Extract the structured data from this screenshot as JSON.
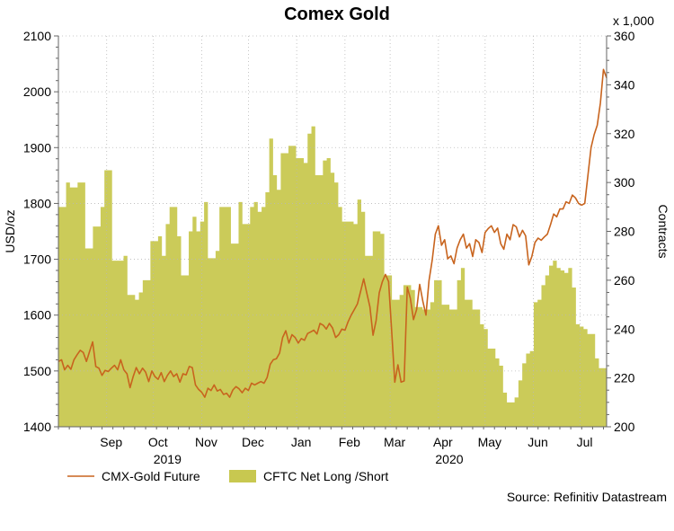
{
  "chart_data": {
    "type": "line+area",
    "title": "Comex Gold",
    "ylabel_left": "USD/oz",
    "ylabel_right": "Contracts",
    "right_multiplier": "x 1,000",
    "ylim_left": [
      1400,
      2100
    ],
    "yticks_left": [
      "1400",
      "1500",
      "1600",
      "1700",
      "1800",
      "1900",
      "2000",
      "2100"
    ],
    "ylim_right": [
      200,
      360
    ],
    "yticks_right": [
      "200",
      "220",
      "240",
      "260",
      "280",
      "300",
      "320",
      "340",
      "360"
    ],
    "x_start": 0,
    "x_end": 352,
    "month_ticks": [
      {
        "label": "Sep",
        "pos": 31
      },
      {
        "label": "Oct",
        "pos": 61
      },
      {
        "label": "Nov",
        "pos": 92
      },
      {
        "label": "Dec",
        "pos": 122
      },
      {
        "label": "Jan",
        "pos": 153
      },
      {
        "label": "Feb",
        "pos": 184
      },
      {
        "label": "Mar",
        "pos": 213
      },
      {
        "label": "Apr",
        "pos": 244
      },
      {
        "label": "May",
        "pos": 274
      },
      {
        "label": "Jun",
        "pos": 305
      },
      {
        "label": "Jul",
        "pos": 335
      }
    ],
    "year_labels": [
      {
        "label": "2019",
        "pos": 70
      },
      {
        "label": "2020",
        "pos": 251
      }
    ],
    "series": [
      {
        "name": "CMX-Gold Future",
        "kind": "line",
        "axis": "left",
        "color": "#c8641e",
        "points": [
          [
            0,
            1517
          ],
          [
            2,
            1520
          ],
          [
            4,
            1502
          ],
          [
            6,
            1510
          ],
          [
            8,
            1503
          ],
          [
            10,
            1520
          ],
          [
            12,
            1529
          ],
          [
            14,
            1537
          ],
          [
            16,
            1533
          ],
          [
            18,
            1517
          ],
          [
            20,
            1535
          ],
          [
            22,
            1552
          ],
          [
            24,
            1508
          ],
          [
            26,
            1505
          ],
          [
            28,
            1492
          ],
          [
            30,
            1501
          ],
          [
            32,
            1499
          ],
          [
            34,
            1505
          ],
          [
            36,
            1510
          ],
          [
            38,
            1502
          ],
          [
            40,
            1520
          ],
          [
            42,
            1502
          ],
          [
            44,
            1495
          ],
          [
            46,
            1470
          ],
          [
            48,
            1490
          ],
          [
            50,
            1506
          ],
          [
            52,
            1495
          ],
          [
            54,
            1505
          ],
          [
            56,
            1498
          ],
          [
            58,
            1481
          ],
          [
            60,
            1500
          ],
          [
            62,
            1490
          ],
          [
            64,
            1485
          ],
          [
            66,
            1497
          ],
          [
            68,
            1481
          ],
          [
            70,
            1492
          ],
          [
            72,
            1500
          ],
          [
            74,
            1490
          ],
          [
            76,
            1495
          ],
          [
            78,
            1480
          ],
          [
            80,
            1495
          ],
          [
            82,
            1493
          ],
          [
            84,
            1508
          ],
          [
            86,
            1506
          ],
          [
            88,
            1475
          ],
          [
            90,
            1467
          ],
          [
            92,
            1462
          ],
          [
            94,
            1453
          ],
          [
            96,
            1469
          ],
          [
            98,
            1465
          ],
          [
            100,
            1475
          ],
          [
            102,
            1464
          ],
          [
            104,
            1467
          ],
          [
            106,
            1458
          ],
          [
            108,
            1460
          ],
          [
            110,
            1453
          ],
          [
            112,
            1466
          ],
          [
            114,
            1472
          ],
          [
            116,
            1468
          ],
          [
            118,
            1461
          ],
          [
            120,
            1469
          ],
          [
            122,
            1465
          ],
          [
            124,
            1478
          ],
          [
            126,
            1475
          ],
          [
            128,
            1478
          ],
          [
            130,
            1481
          ],
          [
            132,
            1478
          ],
          [
            134,
            1488
          ],
          [
            136,
            1512
          ],
          [
            138,
            1520
          ],
          [
            140,
            1522
          ],
          [
            142,
            1532
          ],
          [
            144,
            1560
          ],
          [
            146,
            1572
          ],
          [
            148,
            1550
          ],
          [
            150,
            1565
          ],
          [
            152,
            1560
          ],
          [
            154,
            1550
          ],
          [
            156,
            1558
          ],
          [
            158,
            1555
          ],
          [
            160,
            1567
          ],
          [
            162,
            1570
          ],
          [
            164,
            1573
          ],
          [
            166,
            1566
          ],
          [
            168,
            1585
          ],
          [
            170,
            1582
          ],
          [
            172,
            1575
          ],
          [
            174,
            1585
          ],
          [
            176,
            1577
          ],
          [
            178,
            1560
          ],
          [
            180,
            1565
          ],
          [
            182,
            1575
          ],
          [
            184,
            1573
          ],
          [
            186,
            1588
          ],
          [
            188,
            1600
          ],
          [
            190,
            1610
          ],
          [
            192,
            1620
          ],
          [
            194,
            1642
          ],
          [
            196,
            1665
          ],
          [
            198,
            1640
          ],
          [
            200,
            1615
          ],
          [
            202,
            1564
          ],
          [
            204,
            1590
          ],
          [
            206,
            1640
          ],
          [
            208,
            1660
          ],
          [
            210,
            1673
          ],
          [
            212,
            1660
          ],
          [
            214,
            1570
          ],
          [
            216,
            1480
          ],
          [
            218,
            1511
          ],
          [
            220,
            1480
          ],
          [
            222,
            1482
          ],
          [
            224,
            1650
          ],
          [
            226,
            1630
          ],
          [
            228,
            1592
          ],
          [
            230,
            1610
          ],
          [
            232,
            1655
          ],
          [
            234,
            1625
          ],
          [
            236,
            1600
          ],
          [
            238,
            1662
          ],
          [
            240,
            1698
          ],
          [
            242,
            1745
          ],
          [
            244,
            1760
          ],
          [
            246,
            1725
          ],
          [
            248,
            1735
          ],
          [
            250,
            1701
          ],
          [
            252,
            1706
          ],
          [
            254,
            1692
          ],
          [
            256,
            1720
          ],
          [
            258,
            1735
          ],
          [
            260,
            1745
          ],
          [
            262,
            1720
          ],
          [
            264,
            1728
          ],
          [
            266,
            1705
          ],
          [
            268,
            1735
          ],
          [
            270,
            1730
          ],
          [
            272,
            1712
          ],
          [
            274,
            1748
          ],
          [
            276,
            1755
          ],
          [
            278,
            1760
          ],
          [
            280,
            1748
          ],
          [
            282,
            1756
          ],
          [
            284,
            1728
          ],
          [
            286,
            1718
          ],
          [
            288,
            1745
          ],
          [
            290,
            1735
          ],
          [
            292,
            1762
          ],
          [
            294,
            1758
          ],
          [
            296,
            1740
          ],
          [
            298,
            1752
          ],
          [
            300,
            1742
          ],
          [
            302,
            1690
          ],
          [
            304,
            1705
          ],
          [
            306,
            1730
          ],
          [
            308,
            1738
          ],
          [
            310,
            1734
          ],
          [
            312,
            1740
          ],
          [
            314,
            1745
          ],
          [
            316,
            1762
          ],
          [
            318,
            1781
          ],
          [
            320,
            1776
          ],
          [
            322,
            1790
          ],
          [
            324,
            1790
          ],
          [
            326,
            1803
          ],
          [
            328,
            1800
          ],
          [
            330,
            1815
          ],
          [
            332,
            1810
          ],
          [
            334,
            1800
          ],
          [
            336,
            1797
          ],
          [
            338,
            1800
          ],
          [
            340,
            1850
          ],
          [
            342,
            1900
          ],
          [
            344,
            1923
          ],
          [
            346,
            1940
          ],
          [
            348,
            1980
          ],
          [
            350,
            2040
          ],
          [
            352,
            2025
          ]
        ]
      },
      {
        "name": "CFTC Net Long /Short",
        "kind": "area",
        "axis": "right",
        "color": "#c8c850",
        "weekly_values": [
          290,
          290,
          300,
          298,
          298,
          300,
          300,
          273,
          273,
          282,
          282,
          290,
          305,
          305,
          268,
          268,
          268,
          270,
          254,
          254,
          252,
          255,
          260,
          260,
          276,
          276,
          278,
          270,
          283,
          290,
          290,
          278,
          262,
          262,
          280,
          286,
          280,
          284,
          292,
          269,
          269,
          272,
          290,
          290,
          290,
          275,
          275,
          292,
          283,
          283,
          290,
          292,
          288,
          290,
          296,
          318,
          303,
          297,
          312,
          312,
          315,
          315,
          310,
          310,
          308,
          320,
          323,
          303,
          303,
          309,
          310,
          304,
          300,
          290,
          284,
          284,
          284,
          283,
          293,
          288,
          270,
          270,
          280,
          280,
          279,
          262,
          262,
          252,
          252,
          254,
          258,
          258,
          256,
          249,
          249,
          248,
          248,
          251,
          260,
          260,
          250,
          250,
          248,
          248,
          260,
          265,
          252,
          252,
          248,
          248,
          242,
          240,
          232,
          232,
          228,
          225,
          214,
          210,
          210,
          212,
          219,
          226,
          230,
          231,
          251,
          252,
          258,
          262,
          266,
          268,
          265,
          264,
          263,
          265,
          257,
          242,
          241,
          240,
          238,
          238,
          228,
          224,
          224
        ]
      }
    ],
    "legend": [
      {
        "label": "CMX-Gold Future",
        "kind": "line",
        "color": "#c8641e"
      },
      {
        "label": "CFTC Net Long /Short",
        "kind": "area",
        "color": "#c8c850"
      }
    ],
    "source": "Source: Refinitiv Datastream"
  }
}
